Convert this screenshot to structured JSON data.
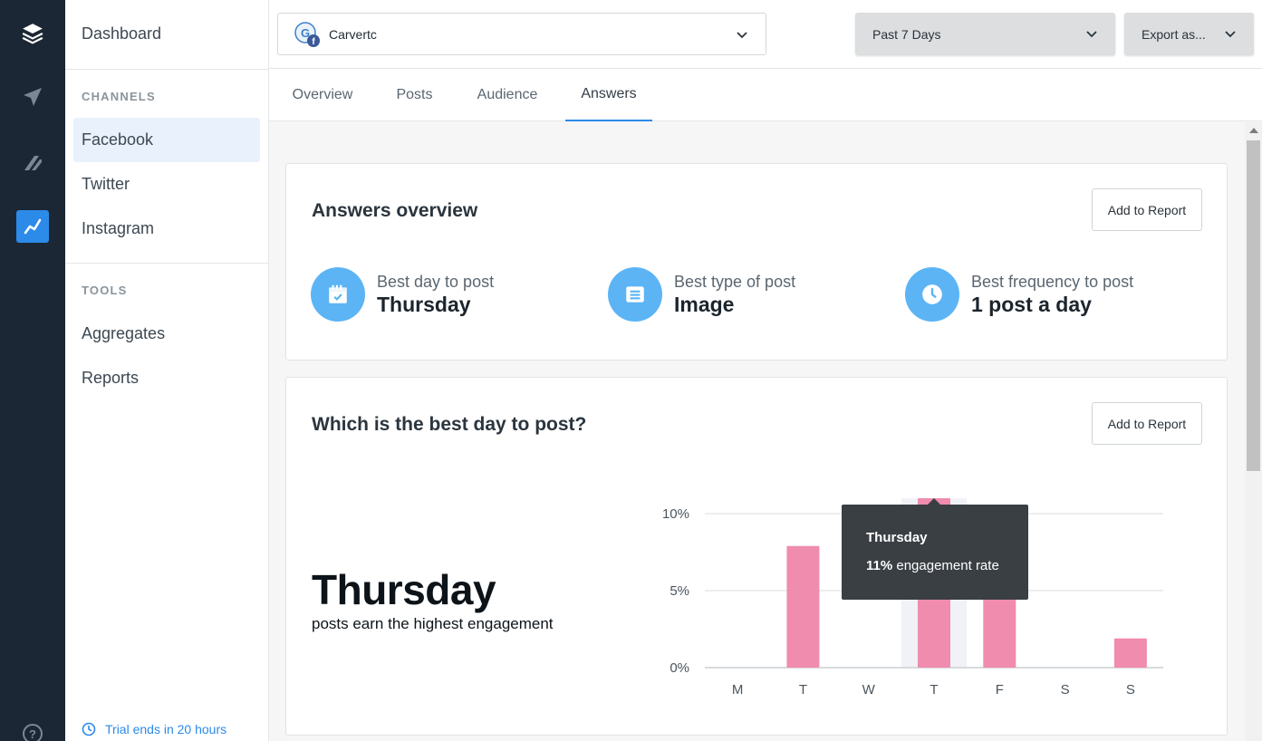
{
  "sidebar": {
    "dashboard": "Dashboard",
    "channels_heading": "CHANNELS",
    "channels": [
      "Facebook",
      "Twitter",
      "Instagram"
    ],
    "tools_heading": "TOOLS",
    "tools": [
      "Aggregates",
      "Reports"
    ],
    "trial": "Trial ends in 20 hours"
  },
  "rail": {
    "icons": [
      "layers-icon",
      "send-icon",
      "reply-icon",
      "analytics-icon",
      "help-icon"
    ],
    "accent": "#2c8ae8"
  },
  "topbar": {
    "account": "Carvertc",
    "date_range": "Past 7 Days",
    "export": "Export as..."
  },
  "tabs": [
    "Overview",
    "Posts",
    "Audience",
    "Answers"
  ],
  "overview": {
    "title": "Answers overview",
    "add_to_report": "Add to Report",
    "stats": [
      {
        "label": "Best day to post",
        "value": "Thursday",
        "icon": "calendar-icon"
      },
      {
        "label": "Best type of post",
        "value": "Image",
        "icon": "post-icon"
      },
      {
        "label": "Best frequency to post",
        "value": "1 post a day",
        "icon": "clock-icon"
      }
    ]
  },
  "best_day": {
    "title": "Which is the best day to post?",
    "add_to_report": "Add to Report",
    "headline": "Thursday",
    "subtext": "posts earn the highest engagement",
    "tooltip": {
      "title": "Thursday",
      "value": "11%",
      "suffix": " engagement rate"
    }
  },
  "chart_data": {
    "type": "bar",
    "categories": [
      "M",
      "T",
      "W",
      "T",
      "F",
      "S",
      "S"
    ],
    "values": [
      0,
      7.9,
      0,
      11,
      5,
      0,
      1.9
    ],
    "yticks": [
      "10%",
      "5%",
      "0%"
    ],
    "ylim": [
      0,
      10
    ],
    "highlight_index": 3,
    "bar_color": "#f08cad"
  }
}
